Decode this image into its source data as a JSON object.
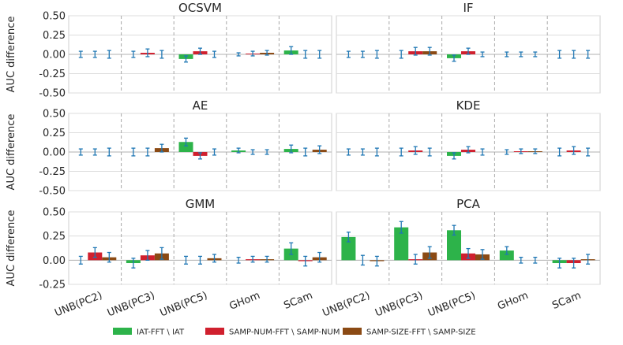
{
  "colors": {
    "series": [
      "#2db34a",
      "#d0202e",
      "#8b4a14"
    ],
    "errorbar": "#1f77b4",
    "panel_bg": "#ffffff",
    "grid": "#dcdcdc",
    "zeroline": "#b0b0b0",
    "separator": "#a8a8a8",
    "frame": "#cfcfcf"
  },
  "legend": {
    "placement": "bottom",
    "items": [
      "IAT-FFT \\ IAT",
      "SAMP-NUM-FFT \\ SAMP-NUM",
      "SAMP-SIZE-FFT \\ SAMP-SIZE"
    ]
  },
  "chart_data": [
    {
      "type": "bar",
      "title": "OCSVM",
      "ylabel": "AUC difference",
      "ylim": [
        -0.5,
        0.5
      ],
      "yticks": [
        "0.50",
        "0.25",
        "0.00",
        "-0.25",
        "-0.50"
      ],
      "categories": [
        "UNB(PC2)",
        "UNB(PC3)",
        "UNB(PC5)",
        "GHom",
        "SCam"
      ],
      "series": [
        {
          "name": "IAT-FFT \\ IAT",
          "values": [
            0.0,
            0.0,
            -0.06,
            0.0,
            0.05
          ],
          "err": [
            0.04,
            0.04,
            0.04,
            0.02,
            0.05
          ]
        },
        {
          "name": "SAMP-NUM-FFT \\ SAMP-NUM",
          "values": [
            0.0,
            0.02,
            0.04,
            0.01,
            0.0
          ],
          "err": [
            0.04,
            0.05,
            0.04,
            0.03,
            0.05
          ]
        },
        {
          "name": "SAMP-SIZE-FFT \\ SAMP-SIZE",
          "values": [
            0.0,
            0.0,
            0.0,
            0.02,
            0.0
          ],
          "err": [
            0.05,
            0.05,
            0.04,
            0.03,
            0.05
          ]
        }
      ]
    },
    {
      "type": "bar",
      "title": "IF",
      "ylabel": "",
      "ylim": [
        -0.5,
        0.5
      ],
      "yticks": [],
      "categories": [
        "UNB(PC2)",
        "UNB(PC3)",
        "UNB(PC5)",
        "GHom",
        "SCam"
      ],
      "series": [
        {
          "name": "IAT-FFT \\ IAT",
          "values": [
            0.0,
            0.0,
            -0.05,
            0.0,
            0.0
          ],
          "err": [
            0.04,
            0.05,
            0.04,
            0.03,
            0.05
          ]
        },
        {
          "name": "SAMP-NUM-FFT \\ SAMP-NUM",
          "values": [
            0.0,
            0.04,
            0.04,
            0.0,
            0.0
          ],
          "err": [
            0.04,
            0.05,
            0.04,
            0.03,
            0.05
          ]
        },
        {
          "name": "SAMP-SIZE-FFT \\ SAMP-SIZE",
          "values": [
            0.0,
            0.04,
            0.0,
            0.0,
            0.0
          ],
          "err": [
            0.05,
            0.05,
            0.03,
            0.03,
            0.05
          ]
        }
      ]
    },
    {
      "type": "bar",
      "title": "AE",
      "ylabel": "AUC difference",
      "ylim": [
        -0.5,
        0.5
      ],
      "yticks": [
        "0.50",
        "0.25",
        "0.00",
        "-0.25",
        "-0.50"
      ],
      "categories": [
        "UNB(PC2)",
        "UNB(PC3)",
        "UNB(PC5)",
        "GHom",
        "SCam"
      ],
      "series": [
        {
          "name": "IAT-FFT \\ IAT",
          "values": [
            0.0,
            0.0,
            0.13,
            0.02,
            0.04
          ],
          "err": [
            0.04,
            0.05,
            0.05,
            0.03,
            0.05
          ]
        },
        {
          "name": "SAMP-NUM-FFT \\ SAMP-NUM",
          "values": [
            0.0,
            0.0,
            -0.05,
            0.0,
            0.0
          ],
          "err": [
            0.04,
            0.05,
            0.04,
            0.03,
            0.05
          ]
        },
        {
          "name": "SAMP-SIZE-FFT \\ SAMP-SIZE",
          "values": [
            0.0,
            0.05,
            0.0,
            0.0,
            0.03
          ],
          "err": [
            0.05,
            0.05,
            0.04,
            0.03,
            0.05
          ]
        }
      ]
    },
    {
      "type": "bar",
      "title": "KDE",
      "ylabel": "",
      "ylim": [
        -0.5,
        0.5
      ],
      "yticks": [],
      "categories": [
        "UNB(PC2)",
        "UNB(PC3)",
        "UNB(PC5)",
        "GHom",
        "SCam"
      ],
      "series": [
        {
          "name": "IAT-FFT \\ IAT",
          "values": [
            0.0,
            0.0,
            -0.05,
            0.0,
            0.0
          ],
          "err": [
            0.04,
            0.05,
            0.04,
            0.03,
            0.05
          ]
        },
        {
          "name": "SAMP-NUM-FFT \\ SAMP-NUM",
          "values": [
            0.0,
            0.02,
            0.03,
            0.01,
            0.02
          ],
          "err": [
            0.04,
            0.05,
            0.04,
            0.03,
            0.05
          ]
        },
        {
          "name": "SAMP-SIZE-FFT \\ SAMP-SIZE",
          "values": [
            0.0,
            0.0,
            0.0,
            0.01,
            0.0
          ],
          "err": [
            0.05,
            0.05,
            0.04,
            0.03,
            0.05
          ]
        }
      ]
    },
    {
      "type": "bar",
      "title": "GMM",
      "ylabel": "AUC difference",
      "ylim": [
        -0.25,
        0.5
      ],
      "yticks": [
        "0.50",
        "0.25",
        "0.00",
        "-0.25"
      ],
      "categories": [
        "UNB(PC2)",
        "UNB(PC3)",
        "UNB(PC5)",
        "GHom",
        "SCam"
      ],
      "series": [
        {
          "name": "IAT-FFT \\ IAT",
          "values": [
            0.0,
            -0.03,
            0.0,
            0.0,
            0.12
          ],
          "err": [
            0.04,
            0.05,
            0.04,
            0.03,
            0.06
          ]
        },
        {
          "name": "SAMP-NUM-FFT \\ SAMP-NUM",
          "values": [
            0.08,
            0.05,
            0.0,
            0.01,
            -0.01
          ],
          "err": [
            0.05,
            0.05,
            0.04,
            0.03,
            0.05
          ]
        },
        {
          "name": "SAMP-SIZE-FFT \\ SAMP-SIZE",
          "values": [
            0.03,
            0.07,
            0.02,
            0.01,
            0.03
          ],
          "err": [
            0.05,
            0.06,
            0.04,
            0.03,
            0.05
          ]
        }
      ]
    },
    {
      "type": "bar",
      "title": "PCA",
      "ylabel": "",
      "ylim": [
        -0.25,
        0.5
      ],
      "yticks": [],
      "categories": [
        "UNB(PC2)",
        "UNB(PC3)",
        "UNB(PC5)",
        "GHom",
        "SCam"
      ],
      "series": [
        {
          "name": "IAT-FFT \\ IAT",
          "values": [
            0.24,
            0.34,
            0.31,
            0.1,
            -0.03
          ],
          "err": [
            0.05,
            0.06,
            0.05,
            0.04,
            0.05
          ]
        },
        {
          "name": "SAMP-NUM-FFT \\ SAMP-NUM",
          "values": [
            0.0,
            0.01,
            0.07,
            0.0,
            -0.03
          ],
          "err": [
            0.05,
            0.05,
            0.05,
            0.03,
            0.05
          ]
        },
        {
          "name": "SAMP-SIZE-FFT \\ SAMP-SIZE",
          "values": [
            -0.01,
            0.08,
            0.06,
            0.0,
            0.01
          ],
          "err": [
            0.05,
            0.06,
            0.05,
            0.03,
            0.05
          ]
        }
      ]
    }
  ]
}
